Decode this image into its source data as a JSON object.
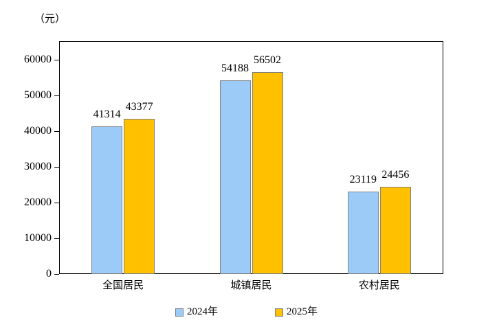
{
  "chart_data": {
    "type": "bar",
    "title": "",
    "unit_label": "（元）",
    "categories": [
      "全国居民",
      "城镇居民",
      "农村居民"
    ],
    "series": [
      {
        "name": "2024年",
        "color": "#9DCBF8",
        "border_color": "#808080",
        "values": [
          41314,
          54188,
          23119
        ]
      },
      {
        "name": "2025年",
        "color": "#FFC000",
        "border_color": "#808080",
        "values": [
          43377,
          56502,
          24456
        ]
      }
    ],
    "xlabel": "",
    "ylabel": "",
    "ylim": [
      0,
      65000
    ],
    "yticks": [
      0,
      10000,
      20000,
      30000,
      40000,
      50000,
      60000
    ],
    "grid": false,
    "legend_position": "bottom",
    "axis_color": "#000000",
    "background_color": "#ffffff",
    "data_labels_visible": true
  }
}
